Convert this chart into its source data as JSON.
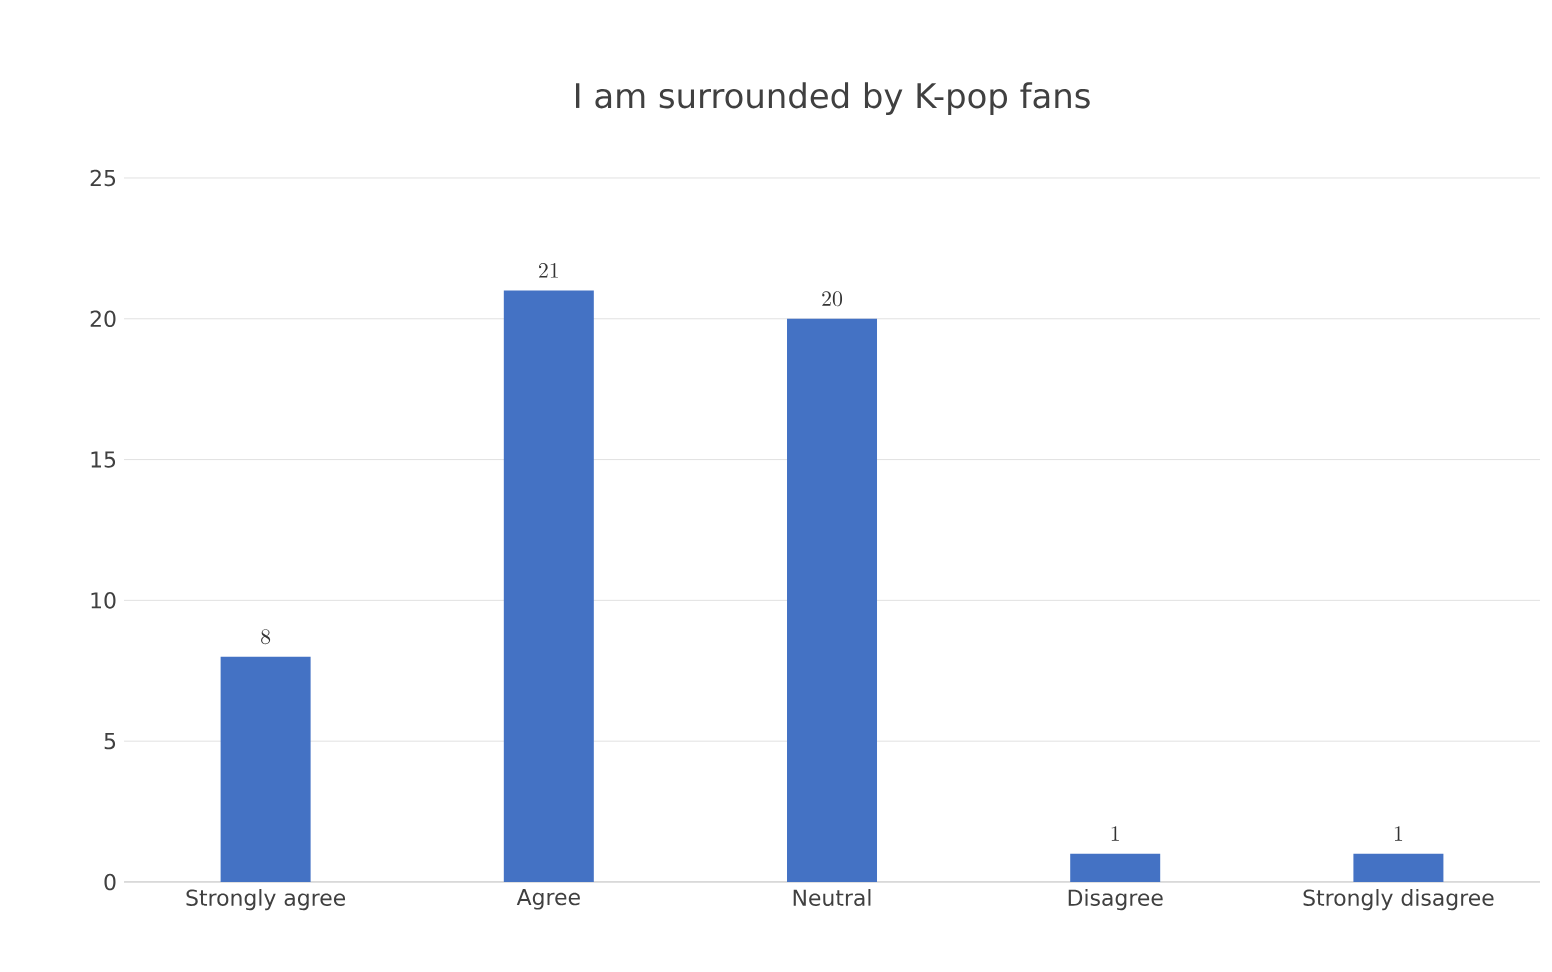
{
  "chart_data": {
    "type": "bar",
    "title": "I am surrounded by K-pop fans",
    "categories": [
      "Strongly agree",
      "Agree",
      "Neutral",
      "Disagree",
      "Strongly disagree"
    ],
    "values": [
      8,
      21,
      20,
      1,
      1
    ],
    "color": "#4472c4",
    "ylim": [
      0,
      25
    ],
    "yticks": [
      0,
      5,
      10,
      15,
      20,
      25
    ],
    "grid": "y",
    "data_labels": true
  }
}
